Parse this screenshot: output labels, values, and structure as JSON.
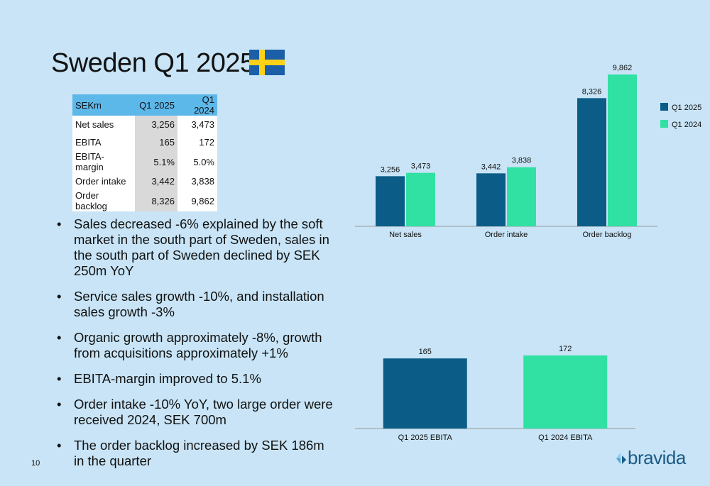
{
  "page": {
    "title": "Sweden Q1 2025",
    "page_number": "10",
    "logo_text": "bravida"
  },
  "table": {
    "headers": [
      "SEKm",
      "Q1 2025",
      "Q1 2024"
    ],
    "rows": [
      [
        "Net sales",
        "3,256",
        "3,473"
      ],
      [
        "EBITA",
        "165",
        "172"
      ],
      [
        "EBITA-margin",
        "5.1%",
        "5.0%"
      ],
      [
        "Order intake",
        "3,442",
        "3,838"
      ],
      [
        "Order backlog",
        "8,326",
        "9,862"
      ]
    ]
  },
  "bullets": [
    "Sales decreased -6% explained by the soft market in the south part of Sweden, sales in the south part of Sweden declined by SEK 250m YoY",
    "Service sales growth -10%, and installation sales growth -3%",
    "Organic growth approximately -8%, growth from acquisitions approximately +1%",
    "EBITA-margin improved to 5.1%",
    "Order intake -10% YoY, two large order were received 2024, SEK 700m",
    "The order backlog increased by SEK 186m in the quarter"
  ],
  "colors": {
    "q1_2025": "#0b5d87",
    "q1_2024": "#31e0a3",
    "table_header": "#5db8ea",
    "background": "#c8e4f6"
  },
  "chart_data": [
    {
      "type": "bar",
      "categories": [
        "Net sales",
        "Order intake",
        "Order backlog"
      ],
      "series": [
        {
          "name": "Q1 2025",
          "values": [
            3256,
            3442,
            8326
          ],
          "labels": [
            "3,256",
            "3,442",
            "8,326"
          ]
        },
        {
          "name": "Q1 2024",
          "values": [
            3473,
            3838,
            9862
          ],
          "labels": [
            "3,473",
            "3,838",
            "9,862"
          ]
        }
      ],
      "ylim": [
        0,
        9862
      ],
      "legend": "right"
    },
    {
      "type": "bar",
      "categories": [
        "Q1 2025 EBITA",
        "Q1 2024 EBITA"
      ],
      "values": [
        165,
        172
      ],
      "labels": [
        "165",
        "172"
      ],
      "ylim": [
        0,
        172
      ]
    }
  ]
}
